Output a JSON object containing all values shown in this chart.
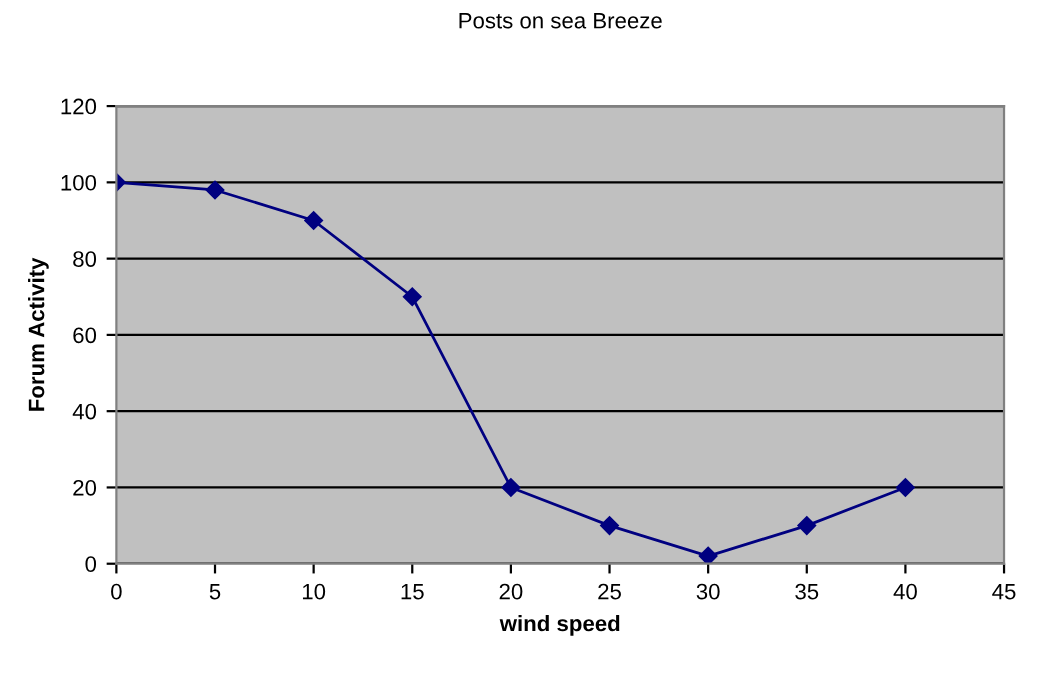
{
  "chart_data": {
    "type": "line",
    "title": "Posts on sea Breeze",
    "xlabel": "wind speed",
    "ylabel": "Forum Activity",
    "x": [
      0,
      5,
      10,
      15,
      20,
      25,
      30,
      35,
      40
    ],
    "series": [
      {
        "color": "#000080",
        "values": [
          100,
          98,
          90,
          70,
          20,
          10,
          2,
          10,
          20
        ]
      }
    ],
    "xlim": [
      0,
      45
    ],
    "xticks": [
      0,
      5,
      10,
      15,
      20,
      25,
      30,
      35,
      40,
      45
    ],
    "ylim": [
      0,
      120
    ],
    "yticks": [
      0,
      20,
      40,
      60,
      80,
      100,
      120
    ],
    "grid": "y",
    "marker": "diamond",
    "line_style": "solid",
    "legend": false
  }
}
